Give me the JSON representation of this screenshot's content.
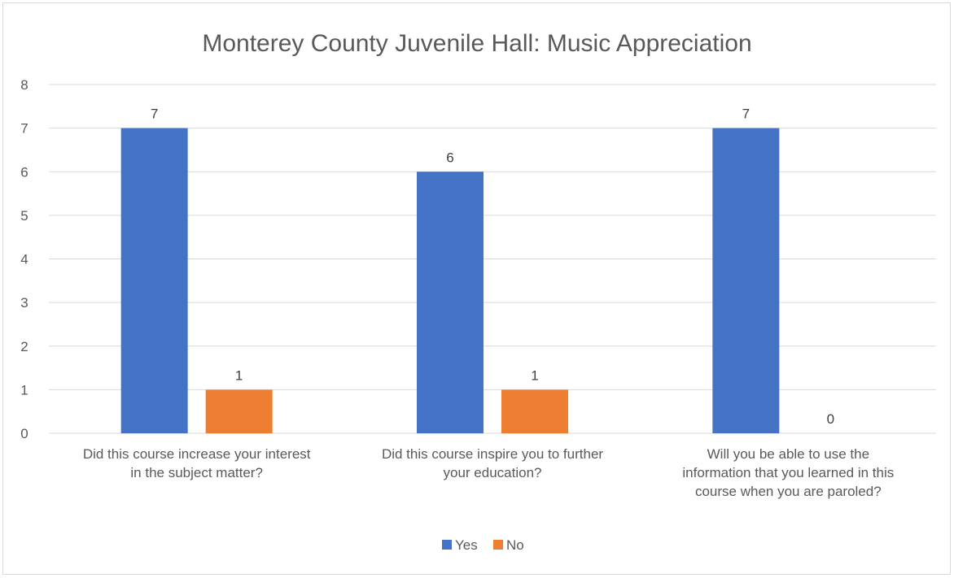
{
  "chart_data": {
    "type": "bar",
    "title": "Monterey County Juvenile Hall: Music Appreciation",
    "categories": [
      [
        "Did this course increase your interest",
        "in the subject matter?"
      ],
      [
        "Did this course inspire you to further",
        "your education?"
      ],
      [
        "Will you be able to use the",
        "information that you learned in this",
        "course when you are paroled?"
      ]
    ],
    "series": [
      {
        "name": "Yes",
        "values": [
          7,
          6,
          7
        ],
        "color": "#4472C4"
      },
      {
        "name": "No",
        "values": [
          1,
          1,
          0
        ],
        "color": "#ED7D31"
      }
    ],
    "ylim": [
      0,
      8
    ],
    "yticks": [
      0,
      1,
      2,
      3,
      4,
      5,
      6,
      7,
      8
    ],
    "grid": true,
    "legend": "bottom",
    "data_labels": true
  }
}
